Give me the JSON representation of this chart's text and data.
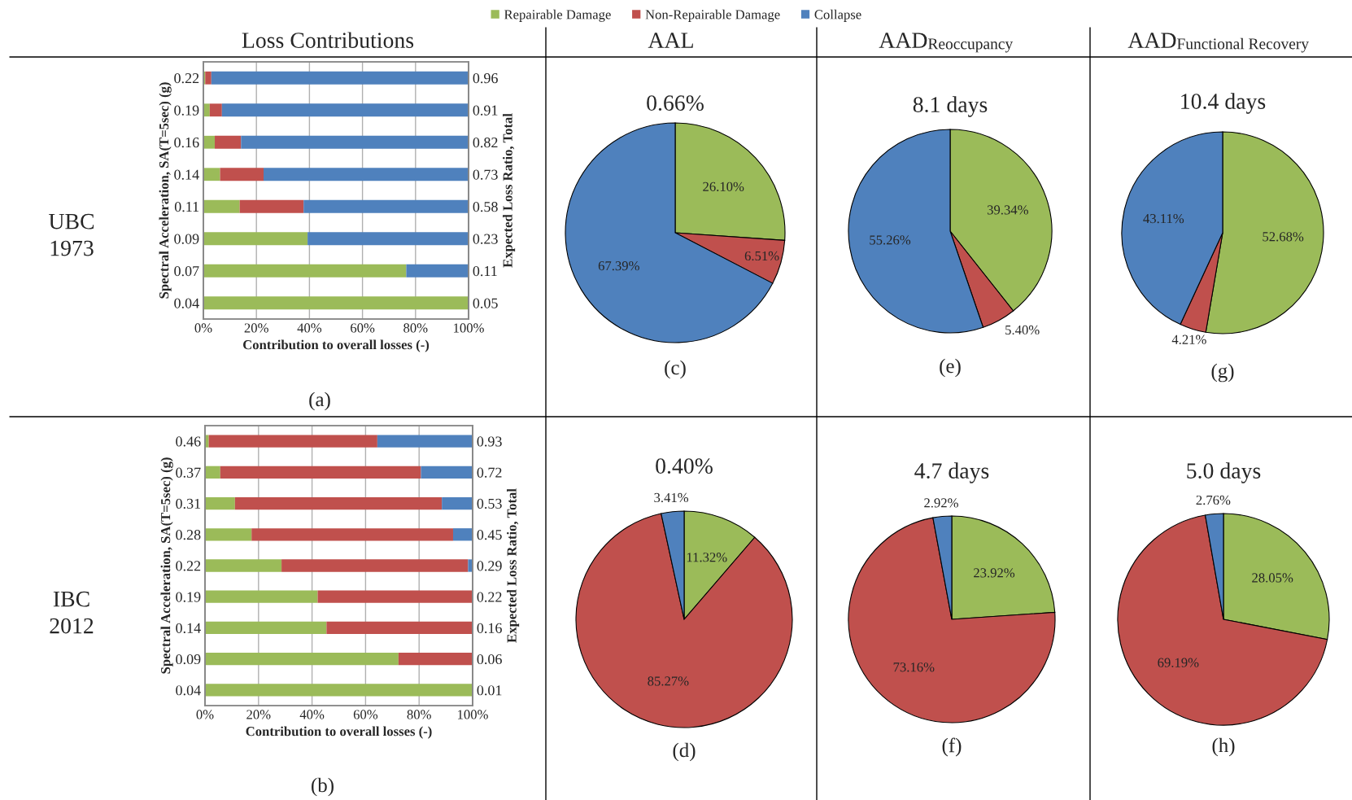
{
  "chart_data": [
    {
      "type": "bar",
      "orientation": "horizontal",
      "stacked": true,
      "title": "Loss Contributions",
      "xlabel": "Contribution to overall losses (-)",
      "ylabel": "Spectral Acceleration, SA(T=5sec) (g)",
      "y2label": "Expected Loss Ratio, Total",
      "categories": [
        "0.22",
        "0.19",
        "0.16",
        "0.14",
        "0.11",
        "0.09",
        "0.07",
        "0.04"
      ],
      "y2_categories": [
        "0.96",
        "0.91",
        "0.82",
        "0.73",
        "0.58",
        "0.23",
        "0.11",
        "0.05"
      ],
      "xlim": [
        0,
        100
      ],
      "xticks": [
        {
          "value": 0,
          "label": "0%"
        },
        {
          "value": 20,
          "label": "20%"
        },
        {
          "value": 40,
          "label": "40%"
        },
        {
          "value": 60,
          "label": "60%"
        },
        {
          "value": 80,
          "label": "80%"
        },
        {
          "value": 100,
          "label": "100%"
        }
      ],
      "grid": "x",
      "legend": "top",
      "annotations": [
        "UBC\n1973",
        "(a)"
      ],
      "series": [
        {
          "name": "Repairable Damage",
          "color": "#9bbb59",
          "values": [
            0.7,
            2.4,
            4.3,
            6.3,
            13.7,
            39.3,
            76.5,
            100
          ]
        },
        {
          "name": "Non-Repairable Damage",
          "color": "#c0504d",
          "values": [
            2.3,
            4.6,
            9.9,
            16.4,
            24.1,
            0,
            0,
            0
          ]
        },
        {
          "name": "Collapse",
          "color": "#4f81bd",
          "values": [
            97.0,
            93.0,
            85.8,
            77.3,
            62.2,
            60.7,
            23.5,
            0
          ]
        }
      ]
    },
    {
      "type": "pie",
      "title": "AAL",
      "subtitle": "0.66%",
      "categories": [
        null,
        null,
        null
      ],
      "values": [
        26.1,
        6.51,
        67.39
      ],
      "colors": [
        "#9bbb59",
        "#c0504d",
        "#4f81bd"
      ],
      "value_labels": [
        "26.10%",
        "6.51%",
        "67.39%"
      ],
      "annotations": [
        "(c)"
      ]
    },
    {
      "type": "pie",
      "title": "AAD$_{Reoccupancy}$",
      "subtitle": "8.1 days",
      "categories": [
        null,
        null,
        null
      ],
      "values": [
        39.34,
        5.4,
        55.26
      ],
      "colors": [
        "#9bbb59",
        "#c0504d",
        "#4f81bd"
      ],
      "value_labels": [
        "39.34%",
        "5.40%",
        "55.26%"
      ],
      "annotations": [
        "(e)"
      ]
    },
    {
      "type": "pie",
      "title": "AAD$_{Functional Recovery}$",
      "subtitle": "10.4 days",
      "categories": [
        null,
        null,
        null
      ],
      "values": [
        52.68,
        4.21,
        43.11
      ],
      "colors": [
        "#9bbb59",
        "#c0504d",
        "#4f81bd"
      ],
      "value_labels": [
        "52.68%",
        "4.21%",
        "43.11%"
      ],
      "annotations": [
        "(g)"
      ]
    },
    {
      "type": "bar",
      "orientation": "horizontal",
      "stacked": true,
      "xlabel": "Contribution to overall losses (-)",
      "ylabel": "Spectral Acceleration, SA(T=5sec) (g)",
      "y2label": "Expected Loss Ratio, Total",
      "categories": [
        "0.46",
        "0.37",
        "0.31",
        "0.28",
        "0.22",
        "0.19",
        "0.14",
        "0.09",
        "0.04"
      ],
      "y2_categories": [
        "0.93",
        "0.72",
        "0.53",
        "0.45",
        "0.29",
        "0.22",
        "0.16",
        "0.06",
        "0.01"
      ],
      "xlim": [
        0,
        100
      ],
      "xticks": [
        {
          "value": 0,
          "label": "0%"
        },
        {
          "value": 20,
          "label": "20%"
        },
        {
          "value": 40,
          "label": "40%"
        },
        {
          "value": 60,
          "label": "60%"
        },
        {
          "value": 80,
          "label": "80%"
        },
        {
          "value": 100,
          "label": "100%"
        }
      ],
      "grid": "x",
      "annotations": [
        "IBC\n2012",
        "(b)"
      ],
      "series": [
        {
          "color": "#9bbb59",
          "values": [
            1.4,
            5.7,
            11.2,
            17.4,
            28.6,
            42.1,
            45.4,
            72.3,
            100
          ]
        },
        {
          "color": "#c0504d",
          "values": [
            63.0,
            75.0,
            77.3,
            75.3,
            69.7,
            57.9,
            54.6,
            27.7,
            0
          ]
        },
        {
          "color": "#4f81bd",
          "values": [
            35.6,
            19.3,
            11.5,
            7.3,
            1.7,
            0,
            0,
            0,
            0
          ]
        }
      ]
    },
    {
      "type": "pie",
      "subtitle": "0.40%",
      "categories": [
        null,
        null,
        null
      ],
      "values": [
        11.32,
        85.27,
        3.41
      ],
      "colors": [
        "#9bbb59",
        "#c0504d",
        "#4f81bd"
      ],
      "value_labels": [
        "11.32%",
        "85.27%",
        "3.41%"
      ],
      "annotations": [
        "(d)"
      ]
    },
    {
      "type": "pie",
      "subtitle": "4.7 days",
      "categories": [
        null,
        null,
        null
      ],
      "values": [
        23.92,
        73.16,
        2.92
      ],
      "colors": [
        "#9bbb59",
        "#c0504d",
        "#4f81bd"
      ],
      "value_labels": [
        "23.92%",
        "73.16%",
        "2.92%"
      ],
      "annotations": [
        "(f)"
      ]
    },
    {
      "type": "pie",
      "subtitle": "5.0 days",
      "categories": [
        null,
        null,
        null
      ],
      "values": [
        28.05,
        69.19,
        2.76
      ],
      "colors": [
        "#9bbb59",
        "#c0504d",
        "#4f81bd"
      ],
      "value_labels": [
        "28.05%",
        "69.19%",
        "2.76%"
      ],
      "annotations": [
        "(h)"
      ]
    }
  ]
}
